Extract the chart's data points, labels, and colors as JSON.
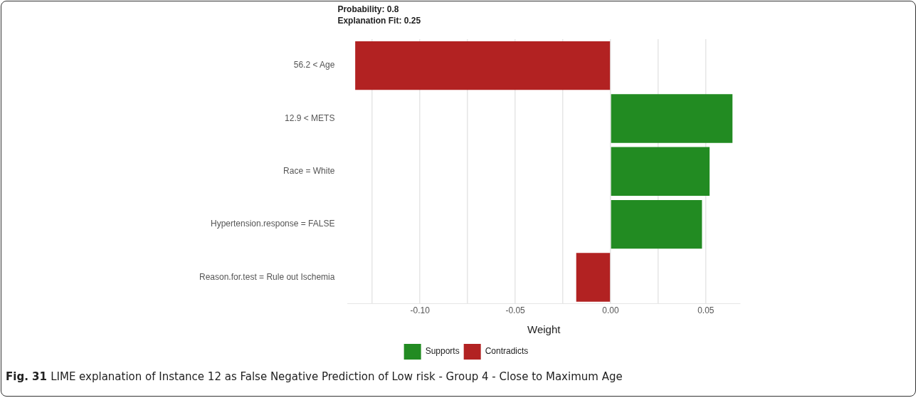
{
  "chart_data": {
    "type": "bar",
    "orientation": "horizontal",
    "title": "Probability: 0.8",
    "subtitle": "Explanation Fit: 0.25",
    "xlabel": "Weight",
    "categories": [
      "56.2 < Age",
      "12.9 < METS",
      "Race = White",
      "Hypertension.response = FALSE",
      "Reason.for.test = Rule out Ischemia"
    ],
    "series": [
      {
        "name": "Supports",
        "color": "#228b22",
        "values": [
          null,
          0.064,
          0.052,
          0.048,
          null
        ]
      },
      {
        "name": "Contradicts",
        "color": "#b22222",
        "values": [
          -0.134,
          null,
          null,
          null,
          -0.018
        ]
      }
    ],
    "xlim": [
      -0.138,
      0.068
    ],
    "xticks": [
      {
        "value": -0.125,
        "label": null
      },
      {
        "value": -0.1,
        "label": "-0.10"
      },
      {
        "value": -0.075,
        "label": null
      },
      {
        "value": -0.05,
        "label": "-0.05"
      },
      {
        "value": -0.025,
        "label": null
      },
      {
        "value": 0,
        "label": "0.00"
      },
      {
        "value": 0.025,
        "label": null
      },
      {
        "value": 0.05,
        "label": "0.05"
      }
    ],
    "grid": "x",
    "legend": "bottom",
    "annotations": [
      "Fig. 31",
      "LIME explanation of Instance 12 as False Negative Prediction of Low risk - Group 4 - Close to Maximum Age"
    ]
  }
}
